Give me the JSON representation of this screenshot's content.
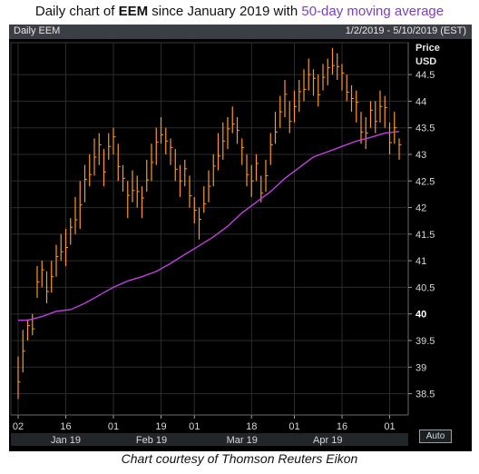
{
  "title": {
    "prefix": "Daily chart of ",
    "ticker": "EEM",
    "middle": " since January 2019 with ",
    "highlight": "50-day moving average"
  },
  "header": {
    "left": "Daily EEM",
    "right": "1/2/2019 - 5/10/2019 (EST)"
  },
  "axis": {
    "price_label": "Price",
    "unit_label": "USD",
    "auto_label": "Auto"
  },
  "caption": "Chart courtesy of Thomson Reuters Eikon",
  "colors": {
    "bars": "#ff9a1a",
    "ma": "#c040e0",
    "grid": "#2c2c2c",
    "highlight_tick": "#ffffff"
  },
  "chart_data": {
    "type": "line",
    "ylim": [
      38.1,
      45.1
    ],
    "y_ticks": [
      38.5,
      39,
      39.5,
      40,
      40.5,
      41,
      41.5,
      42,
      42.5,
      43,
      43.5,
      44,
      44.5
    ],
    "y_tick_labels": [
      "38.5",
      "39",
      "39.5",
      "40",
      "40.5",
      "41",
      "41.5",
      "42",
      "42.5",
      "43",
      "43.5",
      "44",
      "44.5"
    ],
    "x_ticks": [
      {
        "label": "02",
        "t": 0
      },
      {
        "label": "16",
        "t": 10
      },
      {
        "label": "01",
        "t": 20
      },
      {
        "label": "19",
        "t": 30
      },
      {
        "label": "01",
        "t": 37
      },
      {
        "label": "18",
        "t": 49
      },
      {
        "label": "01",
        "t": 58
      },
      {
        "label": "16",
        "t": 68
      },
      {
        "label": "01",
        "t": 78
      }
    ],
    "month_labels": [
      {
        "label": "Jan 19",
        "t": 10
      },
      {
        "label": "Feb 19",
        "t": 28
      },
      {
        "label": "Mar 19",
        "t": 47
      },
      {
        "label": "Apr 19",
        "t": 65
      }
    ],
    "series": [
      {
        "kind": "hl-bars",
        "t": [
          0,
          1,
          2,
          3,
          4,
          5,
          6,
          7,
          8,
          9,
          10,
          11,
          12,
          13,
          14,
          15,
          16,
          17,
          18,
          19,
          20,
          21,
          22,
          23,
          24,
          25,
          26,
          27,
          28,
          29,
          30,
          31,
          32,
          33,
          34,
          35,
          36,
          37,
          38,
          39,
          40,
          41,
          42,
          43,
          44,
          45,
          46,
          47,
          48,
          49,
          50,
          51,
          52,
          53,
          54,
          55,
          56,
          57,
          58,
          59,
          60,
          61,
          62,
          63,
          64,
          65,
          66,
          67,
          68,
          69,
          70,
          71,
          72,
          73,
          74,
          75,
          76,
          77,
          78,
          79,
          80
        ],
        "low": [
          38.4,
          38.9,
          39.5,
          39.6,
          40.3,
          40.5,
          40.2,
          40.4,
          40.7,
          41.0,
          40.9,
          41.3,
          41.5,
          41.6,
          42.1,
          42.4,
          42.6,
          42.8,
          42.4,
          42.9,
          43.0,
          42.5,
          42.3,
          41.8,
          42.1,
          42.0,
          41.8,
          42.3,
          42.5,
          42.8,
          43.2,
          43.0,
          42.8,
          42.5,
          42.2,
          42.4,
          42.0,
          41.7,
          41.4,
          41.9,
          42.1,
          42.4,
          42.7,
          42.9,
          43.1,
          43.4,
          43.2,
          42.8,
          42.4,
          42.2,
          42.5,
          42.1,
          42.3,
          42.8,
          43.2,
          43.5,
          43.7,
          43.4,
          43.6,
          43.8,
          44.0,
          44.2,
          44.1,
          43.9,
          44.2,
          44.3,
          44.5,
          44.4,
          44.2,
          44.0,
          43.8,
          43.6,
          43.2,
          43.1,
          43.5,
          43.4,
          43.6,
          43.5,
          43.0,
          43.2,
          42.9
        ],
        "high": [
          39.2,
          39.7,
          39.9,
          40.0,
          40.9,
          41.0,
          40.8,
          41.0,
          41.3,
          41.5,
          41.6,
          41.8,
          42.2,
          42.5,
          42.8,
          43.0,
          43.3,
          43.4,
          43.1,
          43.4,
          43.5,
          43.2,
          42.8,
          42.5,
          42.7,
          42.6,
          42.4,
          42.9,
          43.2,
          43.5,
          43.7,
          43.5,
          43.3,
          43.1,
          42.8,
          42.9,
          42.6,
          42.2,
          42.0,
          42.4,
          42.7,
          43.0,
          43.4,
          43.6,
          43.7,
          43.9,
          43.7,
          43.3,
          43.0,
          42.8,
          43.0,
          42.6,
          42.9,
          43.4,
          43.8,
          44.1,
          44.4,
          44.0,
          44.2,
          44.4,
          44.6,
          44.8,
          44.6,
          44.5,
          44.7,
          44.8,
          45.0,
          44.9,
          44.7,
          44.5,
          44.3,
          44.2,
          43.8,
          43.7,
          44.0,
          44.0,
          44.2,
          44.1,
          43.6,
          43.8,
          43.3
        ]
      },
      {
        "name": "50-day moving average",
        "kind": "line",
        "t": [
          0,
          2,
          5,
          8,
          11,
          14,
          17,
          20,
          23,
          26,
          29,
          32,
          35,
          38,
          41,
          44,
          47,
          50,
          53,
          56,
          59,
          62,
          65,
          68,
          71,
          74,
          77,
          80
        ],
        "values": [
          39.88,
          39.88,
          39.95,
          40.05,
          40.08,
          40.2,
          40.35,
          40.5,
          40.62,
          40.7,
          40.8,
          40.95,
          41.12,
          41.28,
          41.45,
          41.65,
          41.9,
          42.1,
          42.3,
          42.55,
          42.75,
          42.95,
          43.05,
          43.15,
          43.25,
          43.32,
          43.4,
          43.43
        ]
      }
    ]
  }
}
